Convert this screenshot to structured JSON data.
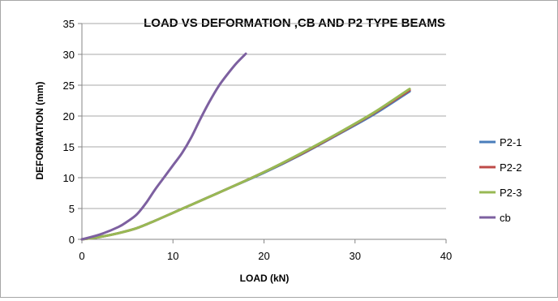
{
  "chart_data": {
    "type": "line",
    "title": "LOAD VS DEFORMATION ,CB AND P2 TYPE BEAMS",
    "xlabel": "LOAD (kN)",
    "ylabel": "DEFORMATION (mm)",
    "xlim": [
      0,
      40
    ],
    "ylim": [
      0,
      35
    ],
    "xticks": [
      0,
      10,
      20,
      30,
      40
    ],
    "yticks": [
      0,
      5,
      10,
      15,
      20,
      25,
      30,
      35
    ],
    "grid": "horizontal",
    "legend_position": "right",
    "series": [
      {
        "name": "P2-1",
        "color": "#4a7ebb",
        "x": [
          0,
          2,
          4,
          6,
          8,
          10,
          12,
          16,
          20,
          24,
          28,
          32,
          36
        ],
        "y": [
          0,
          0.4,
          1.0,
          1.8,
          3.0,
          4.3,
          5.6,
          8.2,
          10.8,
          13.7,
          16.9,
          20.2,
          24.0
        ]
      },
      {
        "name": "P2-2",
        "color": "#be4b48",
        "x": [
          0,
          2,
          4,
          6,
          8,
          10,
          12,
          16,
          20,
          24,
          28,
          32,
          36
        ],
        "y": [
          0,
          0.4,
          1.0,
          1.8,
          3.0,
          4.3,
          5.6,
          8.2,
          10.9,
          13.8,
          17.0,
          20.4,
          24.2
        ]
      },
      {
        "name": "P2-3",
        "color": "#98b954",
        "x": [
          0,
          2,
          4,
          6,
          8,
          10,
          12,
          16,
          20,
          24,
          28,
          32,
          36
        ],
        "y": [
          0,
          0.4,
          1.0,
          1.8,
          3.0,
          4.3,
          5.6,
          8.2,
          10.9,
          13.9,
          17.1,
          20.5,
          24.4
        ]
      },
      {
        "name": "cb",
        "color": "#7d60a0",
        "x": [
          0,
          2,
          4,
          5,
          6,
          7,
          8,
          9,
          10,
          11,
          12,
          13,
          14,
          15,
          16,
          17,
          18
        ],
        "y": [
          0,
          0.8,
          2.0,
          2.9,
          4.0,
          5.8,
          8.0,
          10.0,
          12.0,
          14.0,
          16.5,
          19.5,
          22.3,
          24.8,
          26.8,
          28.6,
          30.1
        ]
      }
    ]
  }
}
